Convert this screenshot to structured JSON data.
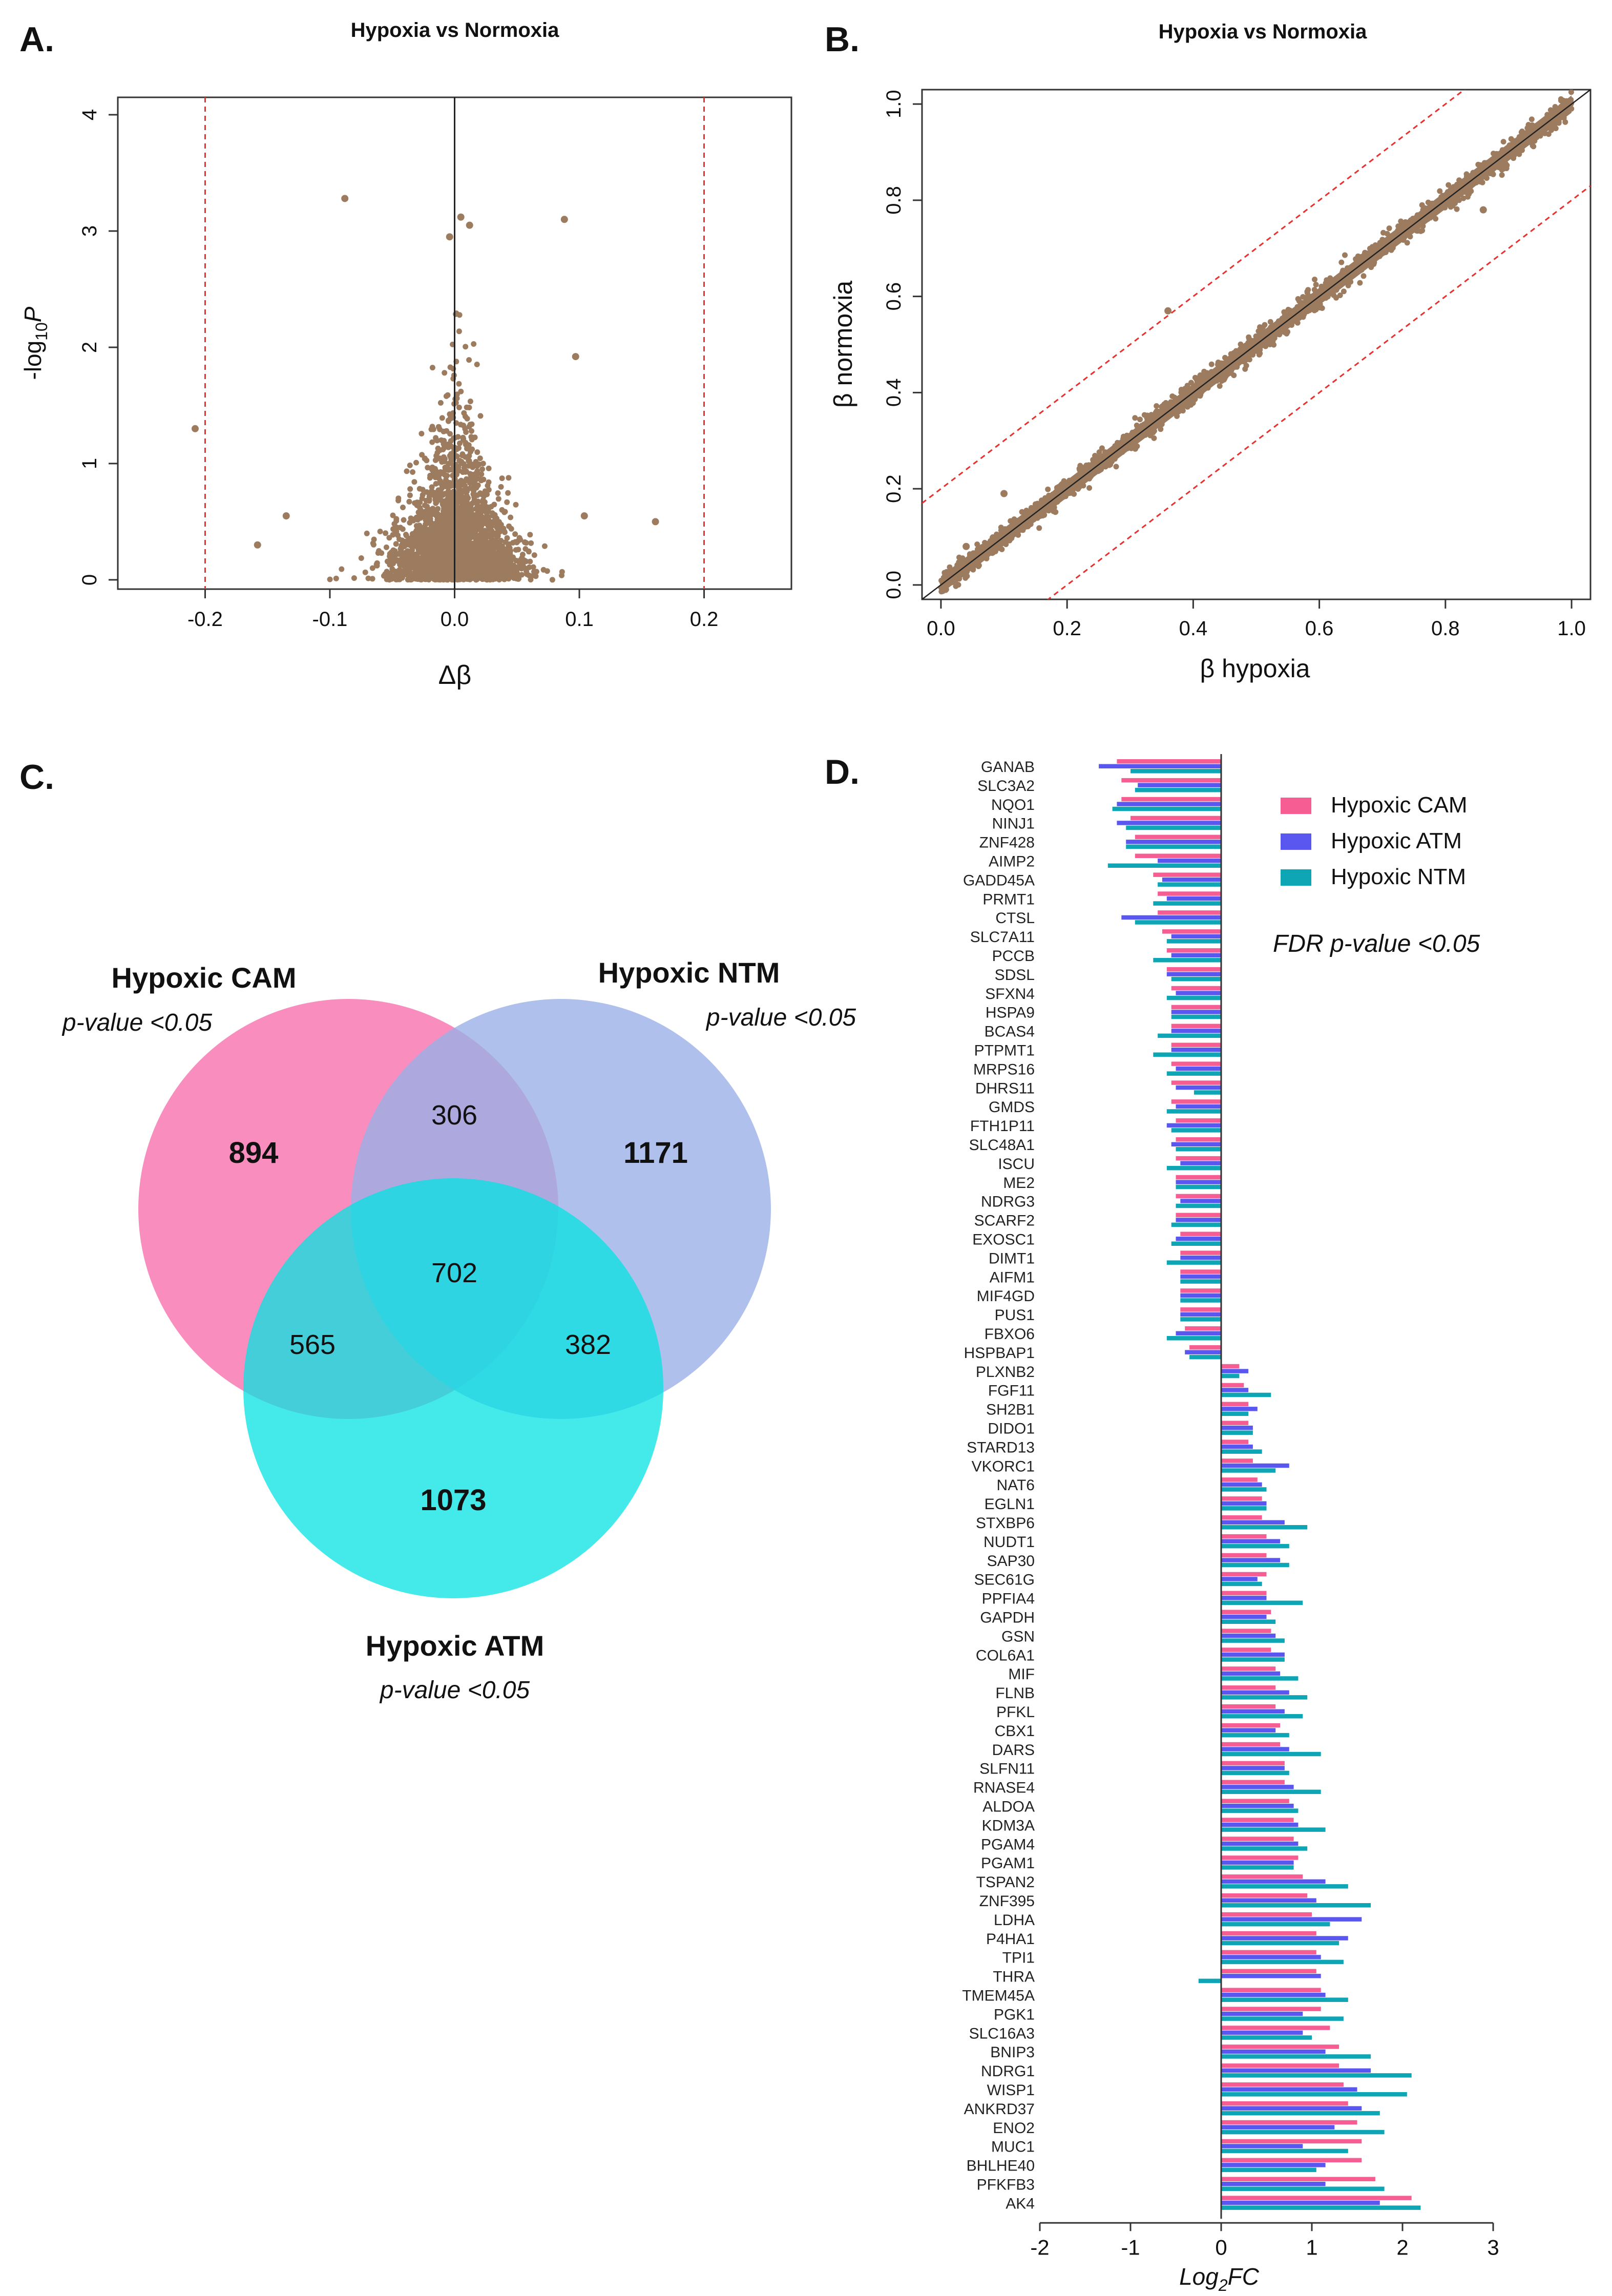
{
  "panels": {
    "a": {
      "letter": "A.",
      "title": "Hypoxia vs Normoxia"
    },
    "b": {
      "letter": "B.",
      "title": "Hypoxia vs Normoxia"
    },
    "c": {
      "letter": "C."
    },
    "d": {
      "letter": "D."
    }
  },
  "colors": {
    "points": "#9c7b5f",
    "threshold": "#e8312f",
    "cam": "#f55d93",
    "atm": "#5a57f0",
    "ntm": "#0ea5b5",
    "venn_cam": "#f988bb",
    "venn_ntm": "#9ab0e6",
    "venn_atm": "#05e3e3"
  },
  "chart_data": [
    {
      "id": "volcano",
      "type": "scatter",
      "title": "Hypoxia vs Normoxia",
      "xlabel": "Δβ",
      "ylabel_main": "-log",
      "ylabel_sub": "10",
      "ylabel_italic": "P",
      "xlim": [
        -0.27,
        0.27
      ],
      "ylim": [
        -0.08,
        4.15
      ],
      "xticks": [
        -0.2,
        -0.1,
        0.0,
        0.1,
        0.2
      ],
      "xtick_labels": [
        "-0.2",
        "-0.1",
        "0.0",
        "0.1",
        "0.2"
      ],
      "yticks": [
        0,
        1,
        2,
        3,
        4
      ],
      "ytick_labels": [
        "0",
        "1",
        "2",
        "3",
        "4"
      ],
      "thresholds_x": [
        -0.2,
        0.2
      ],
      "reference_x": 0,
      "outliers": [
        [
          -0.088,
          3.28
        ],
        [
          0.088,
          3.1
        ],
        [
          -0.208,
          1.3
        ],
        [
          0.097,
          1.92
        ],
        [
          0.161,
          0.5
        ],
        [
          -0.158,
          0.3
        ],
        [
          0.104,
          0.55
        ],
        [
          -0.135,
          0.55
        ],
        [
          0.005,
          3.12
        ],
        [
          0.012,
          3.05
        ],
        [
          -0.004,
          2.95
        ]
      ]
    },
    {
      "id": "beta_scatter",
      "type": "scatter",
      "title": "Hypoxia vs Normoxia",
      "xlabel": "β  hypoxia",
      "ylabel": "β  normoxia",
      "xlim": [
        -0.03,
        1.03
      ],
      "ylim": [
        -0.03,
        1.03
      ],
      "xticks": [
        0.0,
        0.2,
        0.4,
        0.6,
        0.8,
        1.0
      ],
      "xtick_labels": [
        "0.0",
        "0.2",
        "0.4",
        "0.6",
        "0.8",
        "1.0"
      ],
      "yticks": [
        0.0,
        0.2,
        0.4,
        0.6,
        0.8,
        1.0
      ],
      "ytick_labels": [
        "0.0",
        "0.2",
        "0.4",
        "0.6",
        "0.8",
        "1.0"
      ],
      "identity_line": true,
      "threshold_offset": 0.2,
      "outliers": [
        [
          0.36,
          0.57
        ],
        [
          0.04,
          0.08
        ],
        [
          0.1,
          0.19
        ],
        [
          0.86,
          0.78
        ]
      ]
    },
    {
      "id": "venn",
      "type": "venn",
      "sets": [
        {
          "name": "Hypoxic CAM",
          "subtitle": "p-value <0.05",
          "only": 894
        },
        {
          "name": "Hypoxic NTM",
          "subtitle": "p-value <0.05",
          "only": 1171
        },
        {
          "name": "Hypoxic ATM",
          "subtitle": "p-value <0.05",
          "only": 1073
        }
      ],
      "intersections": {
        "cam_ntm": 306,
        "cam_atm": 565,
        "ntm_atm": 382,
        "all": 702
      },
      "labels": {
        "cam_only": "894",
        "ntm_only": "1171",
        "atm_only": "1073",
        "cam_ntm": "306",
        "cam_atm": "565",
        "ntm_atm": "382",
        "all": "702"
      }
    },
    {
      "id": "logfc",
      "type": "bar",
      "orientation": "horizontal",
      "xlabel": "Log",
      "xlabel_sub": "2",
      "xlabel_tail": "FC",
      "xlim": [
        -2,
        3
      ],
      "xticks": [
        -2,
        -1,
        0,
        1,
        2,
        3
      ],
      "xtick_labels": [
        "-2",
        "-1",
        "0",
        "1",
        "2",
        "3"
      ],
      "annotation": "FDR p-value <0.05",
      "series": [
        {
          "name": "Hypoxic CAM",
          "key": "cam"
        },
        {
          "name": "Hypoxic ATM",
          "key": "atm"
        },
        {
          "name": "Hypoxic NTM",
          "key": "ntm"
        }
      ],
      "genes": [
        {
          "name": "GANAB",
          "cam": -1.15,
          "atm": -1.35,
          "ntm": -1.0
        },
        {
          "name": "SLC3A2",
          "cam": -1.1,
          "atm": -0.92,
          "ntm": -0.95
        },
        {
          "name": "NQO1",
          "cam": -1.1,
          "atm": -1.15,
          "ntm": -1.2
        },
        {
          "name": "NINJ1",
          "cam": -1.0,
          "atm": -1.15,
          "ntm": -1.05
        },
        {
          "name": "ZNF428",
          "cam": -0.95,
          "atm": -1.05,
          "ntm": -1.05
        },
        {
          "name": "AIMP2",
          "cam": -0.95,
          "atm": -0.7,
          "ntm": -1.25
        },
        {
          "name": "GADD45A",
          "cam": -0.75,
          "atm": -0.65,
          "ntm": -0.7
        },
        {
          "name": "PRMT1",
          "cam": -0.7,
          "atm": -0.6,
          "ntm": -0.75
        },
        {
          "name": "CTSL",
          "cam": -0.7,
          "atm": -1.1,
          "ntm": -0.95
        },
        {
          "name": "SLC7A11",
          "cam": -0.65,
          "atm": -0.55,
          "ntm": -0.6
        },
        {
          "name": "PCCB",
          "cam": -0.6,
          "atm": -0.55,
          "ntm": -0.75
        },
        {
          "name": "SDSL",
          "cam": -0.6,
          "atm": -0.6,
          "ntm": -0.55
        },
        {
          "name": "SFXN4",
          "cam": -0.55,
          "atm": -0.5,
          "ntm": -0.6
        },
        {
          "name": "HSPA9",
          "cam": -0.55,
          "atm": -0.55,
          "ntm": -0.55
        },
        {
          "name": "BCAS4",
          "cam": -0.55,
          "atm": -0.55,
          "ntm": -0.7
        },
        {
          "name": "PTPMT1",
          "cam": -0.55,
          "atm": -0.55,
          "ntm": -0.75
        },
        {
          "name": "MRPS16",
          "cam": -0.55,
          "atm": -0.5,
          "ntm": -0.6
        },
        {
          "name": "DHRS11",
          "cam": -0.55,
          "atm": -0.5,
          "ntm": -0.3
        },
        {
          "name": "GMDS",
          "cam": -0.55,
          "atm": -0.5,
          "ntm": -0.6
        },
        {
          "name": "FTH1P11",
          "cam": -0.5,
          "atm": -0.6,
          "ntm": -0.55
        },
        {
          "name": "SLC48A1",
          "cam": -0.5,
          "atm": -0.55,
          "ntm": -0.5
        },
        {
          "name": "ISCU",
          "cam": -0.5,
          "atm": -0.45,
          "ntm": -0.6
        },
        {
          "name": "ME2",
          "cam": -0.5,
          "atm": -0.5,
          "ntm": -0.5
        },
        {
          "name": "NDRG3",
          "cam": -0.5,
          "atm": -0.45,
          "ntm": -0.5
        },
        {
          "name": "SCARF2",
          "cam": -0.5,
          "atm": -0.5,
          "ntm": -0.55
        },
        {
          "name": "EXOSC1",
          "cam": -0.45,
          "atm": -0.5,
          "ntm": -0.55
        },
        {
          "name": "DIMT1",
          "cam": -0.45,
          "atm": -0.45,
          "ntm": -0.6
        },
        {
          "name": "AIFM1",
          "cam": -0.45,
          "atm": -0.45,
          "ntm": -0.45
        },
        {
          "name": "MIF4GD",
          "cam": -0.45,
          "atm": -0.45,
          "ntm": -0.45
        },
        {
          "name": "PUS1",
          "cam": -0.45,
          "atm": -0.45,
          "ntm": -0.45
        },
        {
          "name": "FBXO6",
          "cam": -0.4,
          "atm": -0.5,
          "ntm": -0.6
        },
        {
          "name": "HSPBAP1",
          "cam": -0.35,
          "atm": -0.4,
          "ntm": -0.35
        },
        {
          "name": "PLXNB2",
          "cam": 0.2,
          "atm": 0.3,
          "ntm": 0.2
        },
        {
          "name": "FGF11",
          "cam": 0.25,
          "atm": 0.3,
          "ntm": 0.55
        },
        {
          "name": "SH2B1",
          "cam": 0.3,
          "atm": 0.4,
          "ntm": 0.3
        },
        {
          "name": "DIDO1",
          "cam": 0.3,
          "atm": 0.35,
          "ntm": 0.35
        },
        {
          "name": "STARD13",
          "cam": 0.3,
          "atm": 0.35,
          "ntm": 0.45
        },
        {
          "name": "VKORC1",
          "cam": 0.35,
          "atm": 0.75,
          "ntm": 0.6
        },
        {
          "name": "NAT6",
          "cam": 0.4,
          "atm": 0.45,
          "ntm": 0.5
        },
        {
          "name": "EGLN1",
          "cam": 0.45,
          "atm": 0.5,
          "ntm": 0.5
        },
        {
          "name": "STXBP6",
          "cam": 0.45,
          "atm": 0.7,
          "ntm": 0.95
        },
        {
          "name": "NUDT1",
          "cam": 0.5,
          "atm": 0.65,
          "ntm": 0.75
        },
        {
          "name": "SAP30",
          "cam": 0.5,
          "atm": 0.65,
          "ntm": 0.75
        },
        {
          "name": "SEC61G",
          "cam": 0.5,
          "atm": 0.4,
          "ntm": 0.45
        },
        {
          "name": "PPFIA4",
          "cam": 0.5,
          "atm": 0.5,
          "ntm": 0.9
        },
        {
          "name": "GAPDH",
          "cam": 0.55,
          "atm": 0.5,
          "ntm": 0.6
        },
        {
          "name": "GSN",
          "cam": 0.55,
          "atm": 0.6,
          "ntm": 0.7
        },
        {
          "name": "COL6A1",
          "cam": 0.55,
          "atm": 0.7,
          "ntm": 0.7
        },
        {
          "name": "MIF",
          "cam": 0.6,
          "atm": 0.65,
          "ntm": 0.85
        },
        {
          "name": "FLNB",
          "cam": 0.6,
          "atm": 0.75,
          "ntm": 0.95
        },
        {
          "name": "PFKL",
          "cam": 0.6,
          "atm": 0.7,
          "ntm": 0.9
        },
        {
          "name": "CBX1",
          "cam": 0.65,
          "atm": 0.6,
          "ntm": 0.75
        },
        {
          "name": "DARS",
          "cam": 0.65,
          "atm": 0.75,
          "ntm": 1.1
        },
        {
          "name": "SLFN11",
          "cam": 0.7,
          "atm": 0.7,
          "ntm": 0.75
        },
        {
          "name": "RNASE4",
          "cam": 0.7,
          "atm": 0.8,
          "ntm": 1.1
        },
        {
          "name": "ALDOA",
          "cam": 0.75,
          "atm": 0.8,
          "ntm": 0.85
        },
        {
          "name": "KDM3A",
          "cam": 0.8,
          "atm": 0.85,
          "ntm": 1.15
        },
        {
          "name": "PGAM4",
          "cam": 0.8,
          "atm": 0.85,
          "ntm": 0.95
        },
        {
          "name": "PGAM1",
          "cam": 0.85,
          "atm": 0.8,
          "ntm": 0.8
        },
        {
          "name": "TSPAN2",
          "cam": 0.9,
          "atm": 1.15,
          "ntm": 1.4
        },
        {
          "name": "ZNF395",
          "cam": 0.95,
          "atm": 1.05,
          "ntm": 1.65
        },
        {
          "name": "LDHA",
          "cam": 1.0,
          "atm": 1.55,
          "ntm": 1.2
        },
        {
          "name": "P4HA1",
          "cam": 1.05,
          "atm": 1.4,
          "ntm": 1.3
        },
        {
          "name": "TPI1",
          "cam": 1.05,
          "atm": 1.1,
          "ntm": 1.35
        },
        {
          "name": "THRA",
          "cam": 1.05,
          "atm": 1.1,
          "ntm": -0.25
        },
        {
          "name": "TMEM45A",
          "cam": 1.1,
          "atm": 1.15,
          "ntm": 1.4
        },
        {
          "name": "PGK1",
          "cam": 1.1,
          "atm": 0.9,
          "ntm": 1.35
        },
        {
          "name": "SLC16A3",
          "cam": 1.2,
          "atm": 0.9,
          "ntm": 1.0
        },
        {
          "name": "BNIP3",
          "cam": 1.3,
          "atm": 1.15,
          "ntm": 1.65
        },
        {
          "name": "NDRG1",
          "cam": 1.3,
          "atm": 1.65,
          "ntm": 2.1
        },
        {
          "name": "WISP1",
          "cam": 1.35,
          "atm": 1.5,
          "ntm": 2.05
        },
        {
          "name": "ANKRD37",
          "cam": 1.4,
          "atm": 1.55,
          "ntm": 1.75
        },
        {
          "name": "ENO2",
          "cam": 1.5,
          "atm": 1.25,
          "ntm": 1.8
        },
        {
          "name": "MUC1",
          "cam": 1.55,
          "atm": 0.9,
          "ntm": 1.4
        },
        {
          "name": "BHLHE40",
          "cam": 1.55,
          "atm": 1.15,
          "ntm": 1.05
        },
        {
          "name": "PFKFB3",
          "cam": 1.7,
          "atm": 1.15,
          "ntm": 1.8
        },
        {
          "name": "AK4",
          "cam": 2.1,
          "atm": 1.75,
          "ntm": 2.2
        }
      ]
    }
  ]
}
